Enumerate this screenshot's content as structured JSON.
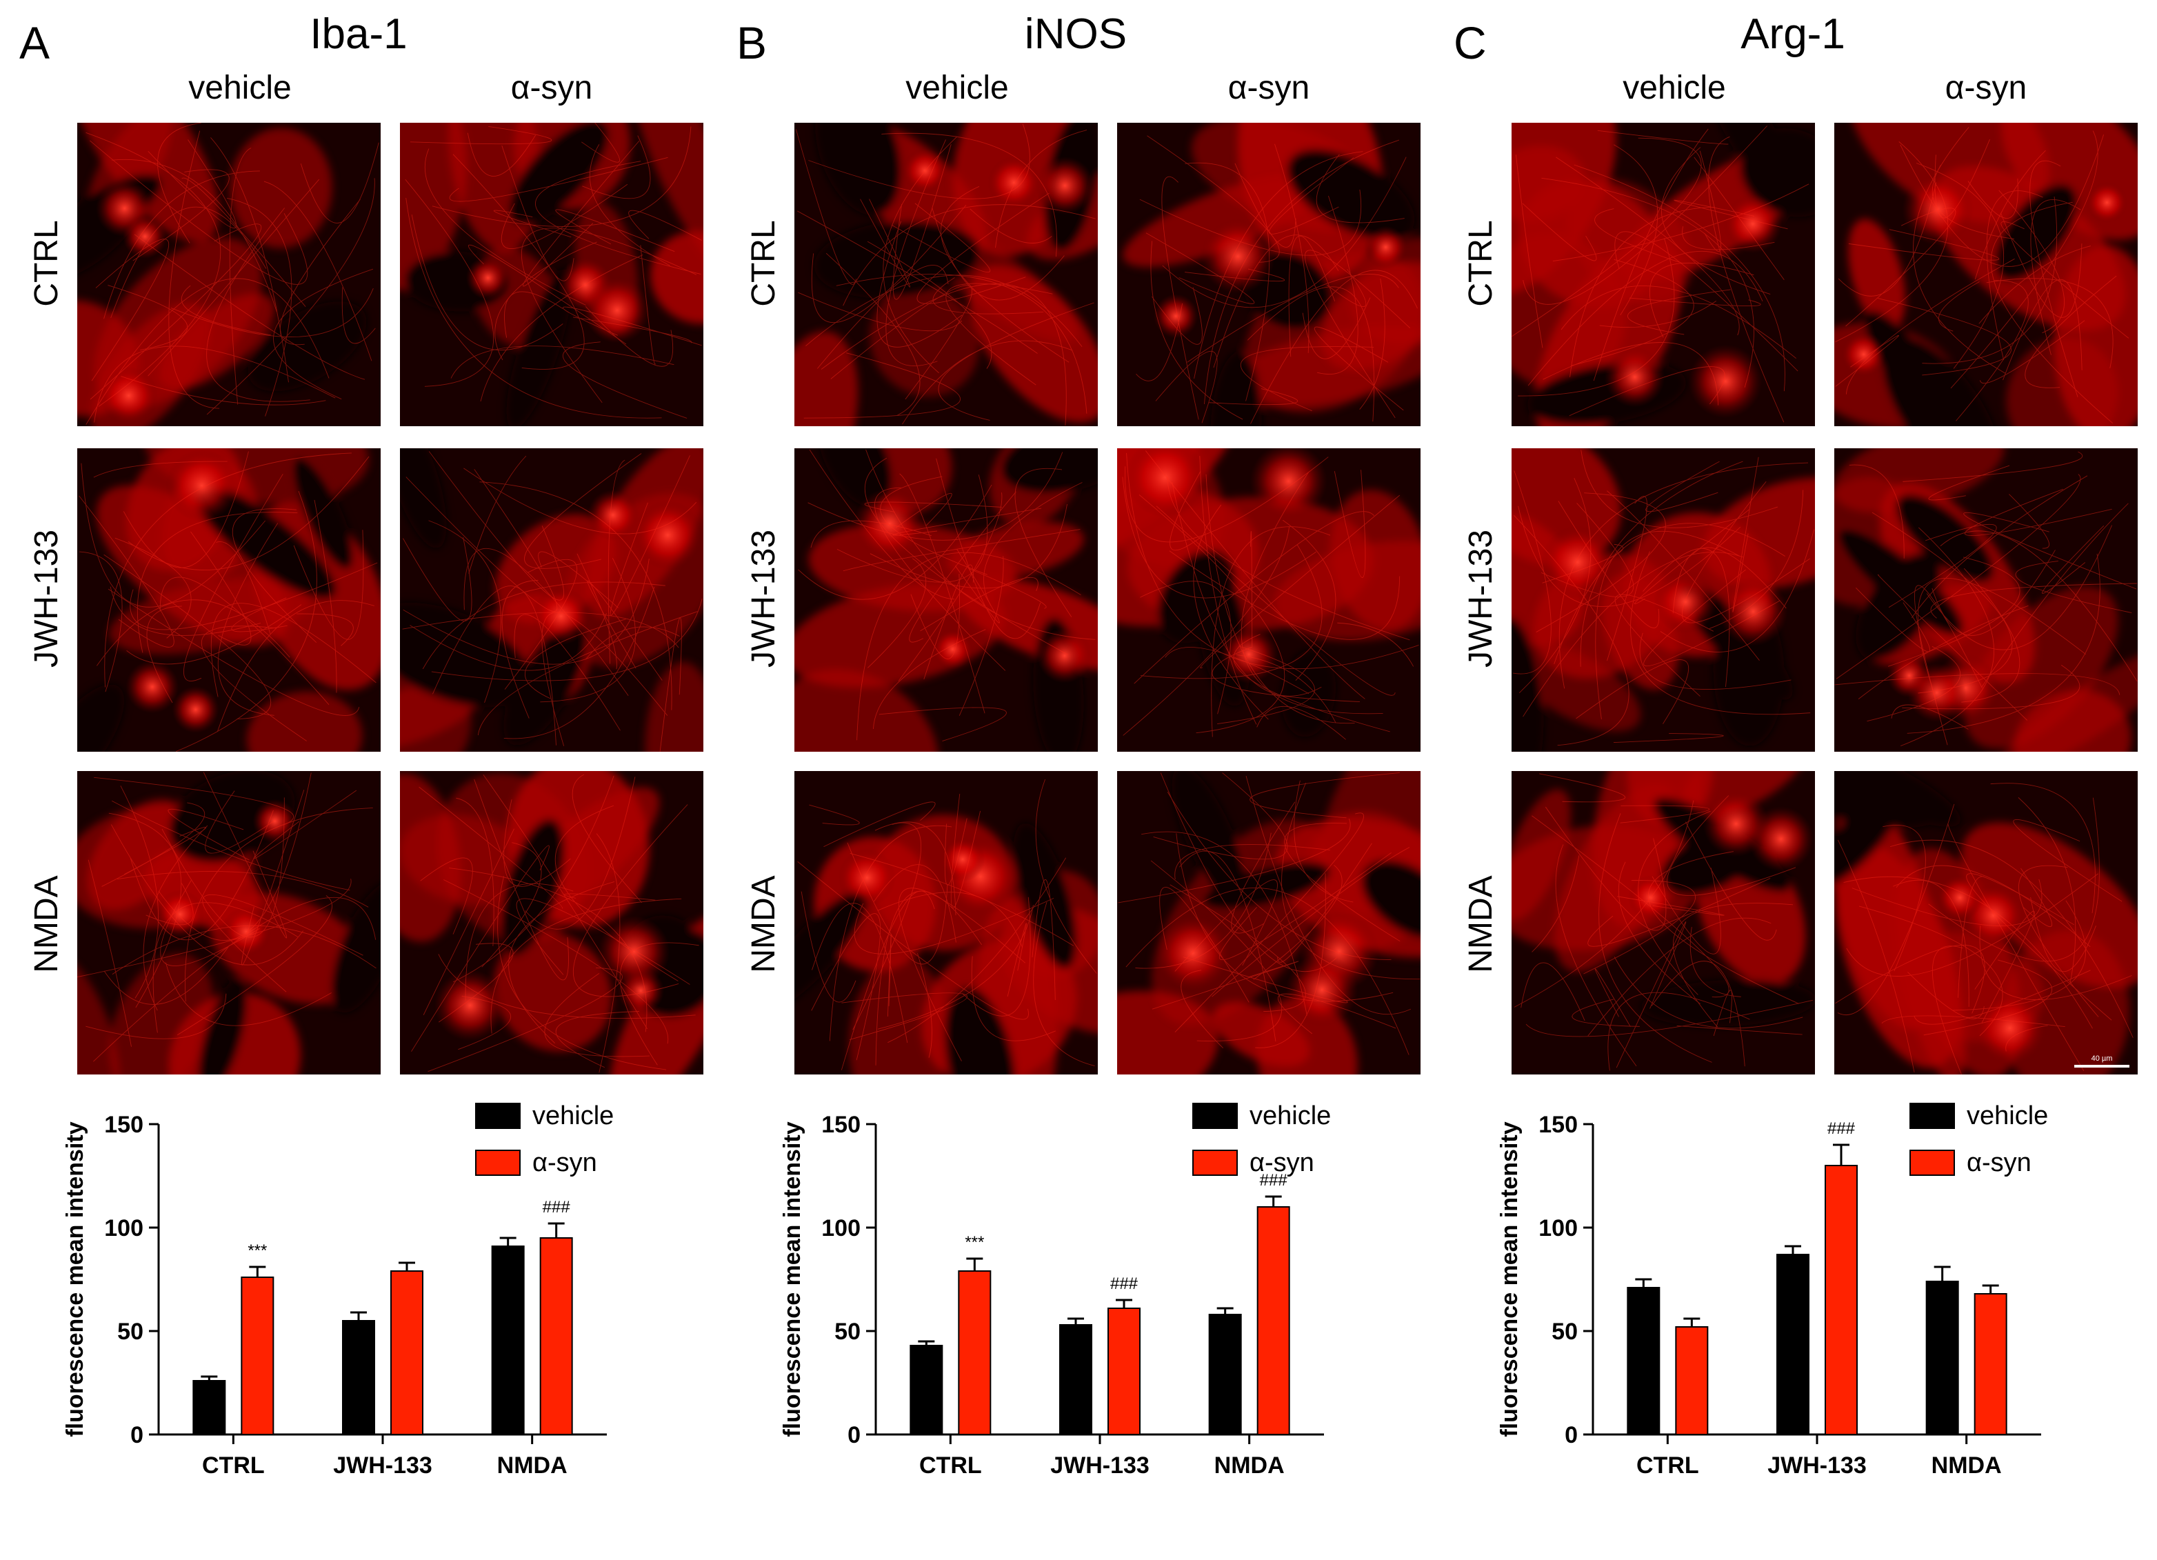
{
  "columns": [
    "vehicle",
    "α-syn"
  ],
  "rows": [
    "CTRL",
    "JWH-133",
    "NMDA"
  ],
  "scale_bar_label": "40 µm",
  "colors": {
    "vehicle": "#000000",
    "asyn": "#ff2200",
    "stain": "#ff0000"
  },
  "panels": [
    {
      "letter": "A",
      "title": "Iba-1"
    },
    {
      "letter": "B",
      "title": "iNOS"
    },
    {
      "letter": "C",
      "title": "Arg-1"
    }
  ],
  "chart_data": [
    {
      "type": "bar",
      "title": "Iba-1",
      "categories": [
        "CTRL",
        "JWH-133",
        "NMDA"
      ],
      "ylabel": "fluorescence mean intensity",
      "ylim": [
        0,
        150
      ],
      "yticks": [
        0,
        50,
        100,
        150
      ],
      "legend": "top-right",
      "series": [
        {
          "name": "vehicle",
          "values": [
            26,
            55,
            91
          ],
          "errors": [
            2,
            4,
            4
          ]
        },
        {
          "name": "α-syn",
          "values": [
            76,
            79,
            95
          ],
          "errors": [
            5,
            4,
            7
          ]
        }
      ],
      "annotations": [
        {
          "category": "CTRL",
          "series": "α-syn",
          "text": "***"
        },
        {
          "category": "NMDA",
          "series": "α-syn",
          "text": "###"
        }
      ]
    },
    {
      "type": "bar",
      "title": "iNOS",
      "categories": [
        "CTRL",
        "JWH-133",
        "NMDA"
      ],
      "ylabel": "fluorescence mean intensity",
      "ylim": [
        0,
        150
      ],
      "yticks": [
        0,
        50,
        100,
        150
      ],
      "legend": "top-right",
      "series": [
        {
          "name": "vehicle",
          "values": [
            43,
            53,
            58
          ],
          "errors": [
            2,
            3,
            3
          ]
        },
        {
          "name": "α-syn",
          "values": [
            79,
            61,
            110
          ],
          "errors": [
            6,
            4,
            5
          ]
        }
      ],
      "annotations": [
        {
          "category": "CTRL",
          "series": "α-syn",
          "text": "***"
        },
        {
          "category": "JWH-133",
          "series": "α-syn",
          "text": "###"
        },
        {
          "category": "NMDA",
          "series": "α-syn",
          "text": "###"
        }
      ]
    },
    {
      "type": "bar",
      "title": "Arg-1",
      "categories": [
        "CTRL",
        "JWH-133",
        "NMDA"
      ],
      "ylabel": "fluorescence mean intensity",
      "ylim": [
        0,
        150
      ],
      "yticks": [
        0,
        50,
        100,
        150
      ],
      "legend": "top-right",
      "series": [
        {
          "name": "vehicle",
          "values": [
            71,
            87,
            74
          ],
          "errors": [
            4,
            4,
            7
          ]
        },
        {
          "name": "α-syn",
          "values": [
            52,
            130,
            68
          ],
          "errors": [
            4,
            10,
            4
          ]
        }
      ],
      "annotations": [
        {
          "category": "JWH-133",
          "series": "α-syn",
          "text": "###"
        }
      ]
    }
  ]
}
